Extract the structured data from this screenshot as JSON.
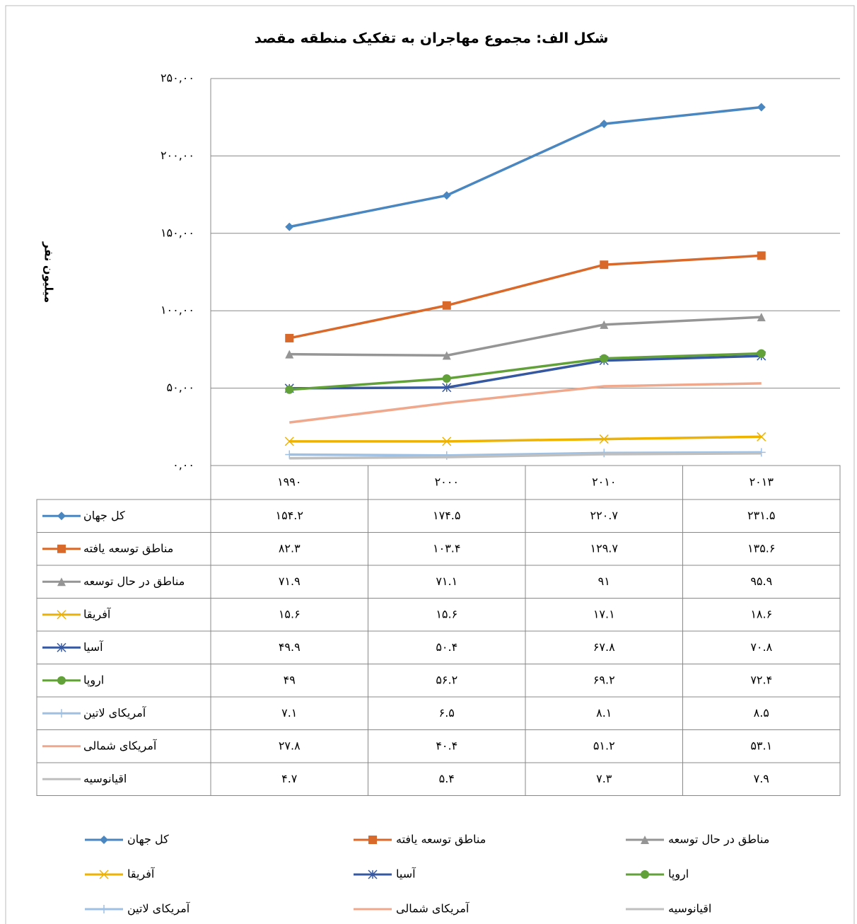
{
  "chart_data": {
    "type": "line",
    "title": "شکل الف: مجموع مهاجران به تفکیک منطقه مقصد",
    "y_label": "میلیون نفر",
    "categories": [
      "۱۹۹۰",
      "۲۰۰۰",
      "۲۰۱۰",
      "۲۰۱۳"
    ],
    "ylim": [
      0,
      250
    ],
    "yticks": [
      {
        "value": 0,
        "label": "۰,۰۰"
      },
      {
        "value": 50,
        "label": "۵۰,۰۰"
      },
      {
        "value": 100,
        "label": "۱۰۰,۰۰"
      },
      {
        "value": 150,
        "label": "۱۵۰,۰۰"
      },
      {
        "value": 200,
        "label": "۲۰۰,۰۰"
      },
      {
        "value": 250,
        "label": "۲۵۰,۰۰"
      }
    ],
    "grid": true,
    "legend": "bottom",
    "series": [
      {
        "name": "کل جهان",
        "color": "#4a86c0",
        "marker": "diamond",
        "values": [
          154.2,
          174.5,
          220.7,
          231.5
        ],
        "value_labels": [
          "۱۵۴.۲",
          "۱۷۴.۵",
          "۲۲۰.۷",
          "۲۳۱.۵"
        ]
      },
      {
        "name": "مناطق توسعه یافته",
        "color": "#d9692a",
        "marker": "square",
        "values": [
          82.3,
          103.4,
          129.7,
          135.6
        ],
        "value_labels": [
          "۸۲.۳",
          "۱۰۳.۴",
          "۱۲۹.۷",
          "۱۳۵.۶"
        ]
      },
      {
        "name": "مناطق در حال توسعه",
        "color": "#959595",
        "marker": "triangle",
        "values": [
          71.9,
          71.1,
          91,
          95.9
        ],
        "value_labels": [
          "۷۱.۹",
          "۷۱.۱",
          "۹۱",
          "۹۵.۹"
        ]
      },
      {
        "name": "آفریقا",
        "color": "#eeb200",
        "marker": "x",
        "values": [
          15.6,
          15.6,
          17.1,
          18.6
        ],
        "value_labels": [
          "۱۵.۶",
          "۱۵.۶",
          "۱۷.۱",
          "۱۸.۶"
        ]
      },
      {
        "name": "آسیا",
        "color": "#3558a0",
        "marker": "star",
        "values": [
          49.9,
          50.4,
          67.8,
          70.8
        ],
        "value_labels": [
          "۴۹.۹",
          "۵۰.۴",
          "۶۷.۸",
          "۷۰.۸"
        ]
      },
      {
        "name": "اروپا",
        "color": "#62a03a",
        "marker": "circle",
        "values": [
          49,
          56.2,
          69.2,
          72.4
        ],
        "value_labels": [
          "۴۹",
          "۵۶.۲",
          "۶۹.۲",
          "۷۲.۴"
        ]
      },
      {
        "name": "آمریکای لاتین",
        "color": "#9ec0e4",
        "marker": "plus",
        "values": [
          7.1,
          6.5,
          8.1,
          8.5
        ],
        "value_labels": [
          "۷.۱",
          "۶.۵",
          "۸.۱",
          "۸.۵"
        ]
      },
      {
        "name": "آمریکای شمالی",
        "color": "#f0a88c",
        "marker": "none",
        "values": [
          27.8,
          40.4,
          51.2,
          53.1
        ],
        "value_labels": [
          "۲۷.۸",
          "۴۰.۴",
          "۵۱.۲",
          "۵۳.۱"
        ]
      },
      {
        "name": "اقیانوسیه",
        "color": "#bfbfbf",
        "marker": "none",
        "values": [
          4.7,
          5.4,
          7.3,
          7.9
        ],
        "value_labels": [
          "۴.۷",
          "۵.۴",
          "۷.۳",
          "۷.۹"
        ]
      }
    ]
  }
}
